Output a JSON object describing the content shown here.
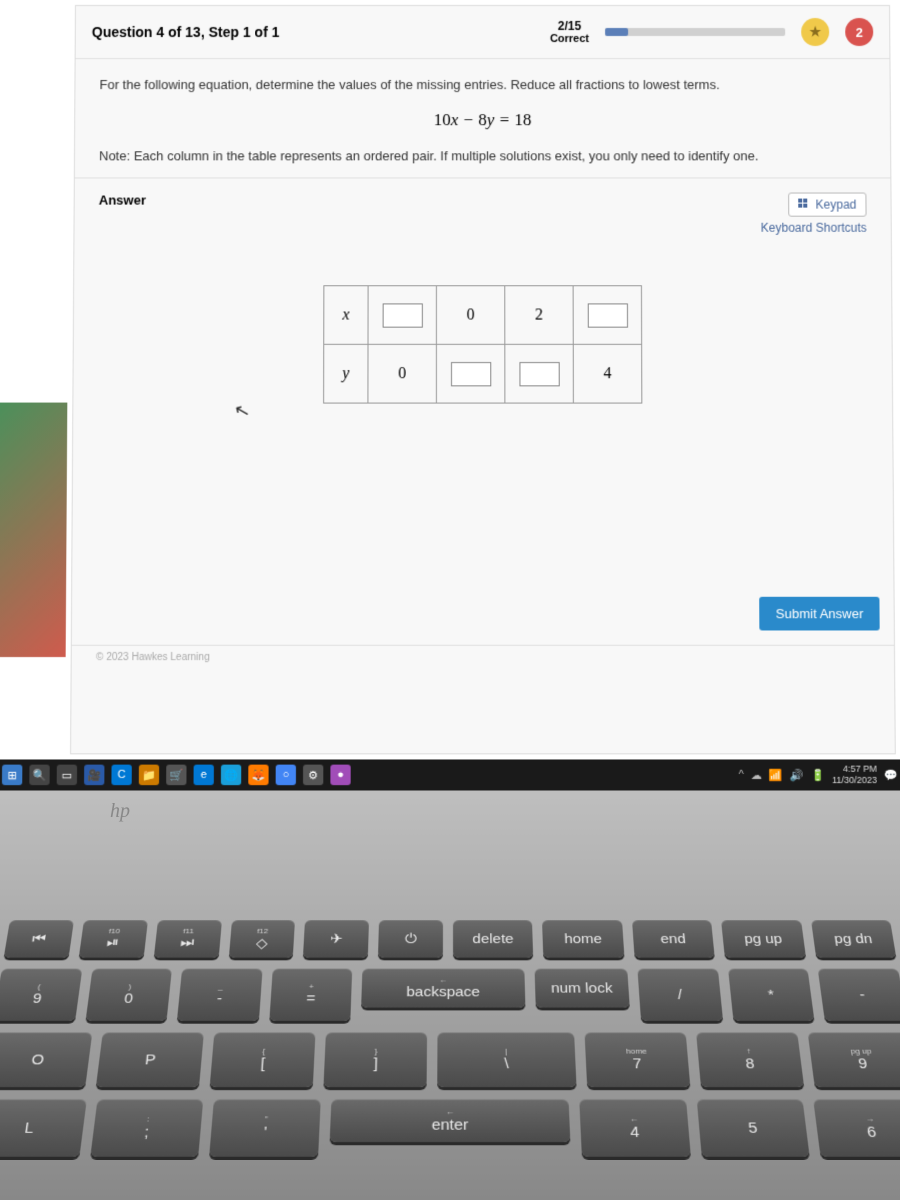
{
  "header": {
    "question_label": "Question 4 of 13, Step 1 of 1",
    "score_fraction": "2/15",
    "score_label": "Correct",
    "progress_percent": 13,
    "streak_badge": "2"
  },
  "problem": {
    "instruction": "For the following equation, determine the values of the missing entries. Reduce all fractions to lowest terms.",
    "equation_html": "10x − 8y = 18",
    "note": "Note: Each column in the table represents an ordered pair. If multiple solutions exist, you only need to identify one."
  },
  "answer": {
    "label": "Answer",
    "keypad_label": "Keypad",
    "shortcuts_label": "Keyboard Shortcuts",
    "table": {
      "row_headers": [
        "x",
        "y"
      ],
      "cells": [
        [
          "__input__",
          "0",
          "2",
          "__input__"
        ],
        [
          "0",
          "__input__",
          "__input__",
          "4"
        ]
      ]
    },
    "submit_label": "Submit Answer"
  },
  "footer": {
    "copyright": "© 2023 Hawkes Learning"
  },
  "taskbar": {
    "time": "4:57 PM",
    "date": "11/30/2023",
    "icons": [
      {
        "bg": "#3a7bc8",
        "glyph": "⊞"
      },
      {
        "bg": "#444",
        "glyph": "🔍"
      },
      {
        "bg": "#444",
        "glyph": "▭"
      },
      {
        "bg": "#2a5aa8",
        "glyph": "🎥"
      },
      {
        "bg": "#0078d4",
        "glyph": "C"
      },
      {
        "bg": "#cc7a00",
        "glyph": "📁"
      },
      {
        "bg": "#555",
        "glyph": "🛒"
      },
      {
        "bg": "#0078d4",
        "glyph": "e"
      },
      {
        "bg": "#1a9fd9",
        "glyph": "🌐"
      },
      {
        "bg": "#ff7b00",
        "glyph": "🦊"
      },
      {
        "bg": "#4285f4",
        "glyph": "○"
      },
      {
        "bg": "#555",
        "glyph": "⚙"
      },
      {
        "bg": "#a14db8",
        "glyph": "●"
      }
    ]
  },
  "keyboard": {
    "rows": [
      [
        {
          "main": "⏮",
          "sub": "",
          "w": 1
        },
        {
          "main": "⏯",
          "sub": "f10",
          "w": 1
        },
        {
          "main": "⏭",
          "sub": "f11",
          "w": 1
        },
        {
          "main": "◇",
          "sub": "f12",
          "w": 1
        },
        {
          "main": "✈",
          "sub": "",
          "w": 1
        },
        {
          "main": "⏻",
          "sub": "",
          "w": 1
        },
        {
          "main": "delete",
          "sub": "",
          "w": 1.3
        },
        {
          "main": "home",
          "sub": "",
          "w": 1.3
        },
        {
          "main": "end",
          "sub": "",
          "w": 1.3
        },
        {
          "main": "pg up",
          "sub": "",
          "w": 1.3
        },
        {
          "main": "pg dn",
          "sub": "",
          "w": 1.3
        }
      ],
      [
        {
          "main": "9",
          "sub": "(",
          "w": 1,
          "big": 1
        },
        {
          "main": "0",
          "sub": ")",
          "w": 1,
          "big": 1
        },
        {
          "main": "-",
          "sub": "_",
          "w": 1,
          "big": 1
        },
        {
          "main": "=",
          "sub": "+",
          "w": 1,
          "big": 1
        },
        {
          "main": "backspace",
          "sub": "←",
          "w": 2.2
        },
        {
          "main": "num lock",
          "sub": "",
          "w": 1.2
        },
        {
          "main": "/",
          "sub": "",
          "w": 1,
          "big": 1
        },
        {
          "main": "*",
          "sub": "",
          "w": 1,
          "big": 1
        },
        {
          "main": "-",
          "sub": "",
          "w": 1,
          "big": 1
        }
      ],
      [
        {
          "main": "O",
          "sub": "",
          "w": 1,
          "big": 1
        },
        {
          "main": "P",
          "sub": "",
          "w": 1,
          "big": 1
        },
        {
          "main": "[",
          "sub": "{",
          "w": 1,
          "big": 1
        },
        {
          "main": "]",
          "sub": "}",
          "w": 1,
          "big": 1
        },
        {
          "main": "\\",
          "sub": "|",
          "w": 1.4,
          "big": 1
        },
        {
          "main": "7",
          "sub": "home",
          "w": 1,
          "big": 1
        },
        {
          "main": "8",
          "sub": "↑",
          "w": 1,
          "big": 1
        },
        {
          "main": "9",
          "sub": "pg up",
          "w": 1,
          "big": 1
        }
      ],
      [
        {
          "main": "L",
          "sub": "",
          "w": 1,
          "big": 1
        },
        {
          "main": ";",
          "sub": ":",
          "w": 1,
          "big": 1
        },
        {
          "main": "'",
          "sub": "\"",
          "w": 1,
          "big": 1
        },
        {
          "main": "enter",
          "sub": "←",
          "w": 2.4
        },
        {
          "main": "4",
          "sub": "←",
          "w": 1,
          "big": 1
        },
        {
          "main": "5",
          "sub": "",
          "w": 1,
          "big": 1
        },
        {
          "main": "6",
          "sub": "→",
          "w": 1,
          "big": 1
        }
      ]
    ]
  },
  "colors": {
    "submit": "#2a8acb",
    "link": "#4a6a9e",
    "badge_red": "#d9534f",
    "badge_gold": "#f0c94a"
  }
}
